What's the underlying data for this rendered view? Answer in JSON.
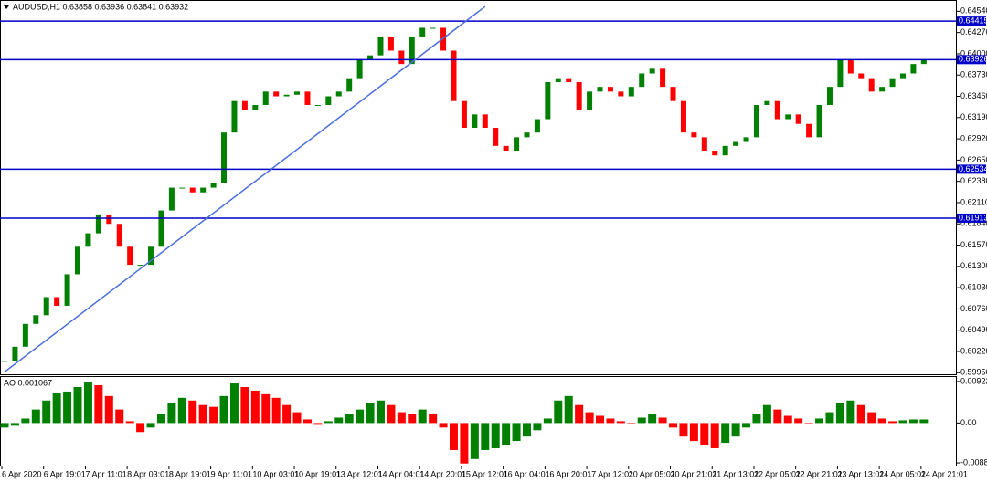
{
  "chart_data": [
    {
      "type": "candlestick",
      "title": "AUDUSD,H1 0.63858 0.63936 0.63841 0.63932",
      "categories": [
        "6 Apr 2020",
        null,
        null,
        null,
        "6 Apr 19:01",
        null,
        null,
        null,
        "7 Apr 11:01",
        null,
        null,
        null,
        "8 Apr 03:01",
        null,
        null,
        null,
        "8 Apr 19:01",
        null,
        null,
        null,
        "9 Apr 11:01",
        null,
        null,
        null,
        "10 Apr 03:01",
        null,
        null,
        null,
        "10 Apr 19:01",
        null,
        null,
        null,
        "13 Apr 12:01",
        null,
        null,
        null,
        "14 Apr 04:01",
        null,
        null,
        null,
        "14 Apr 20:01",
        null,
        null,
        null,
        "15 Apr 12:01",
        null,
        null,
        null,
        "16 Apr 04:01",
        null,
        null,
        null,
        "16 Apr 20:01",
        null,
        null,
        null,
        "17 Apr 12:01",
        null,
        null,
        null,
        "20 Apr 05:01",
        null,
        null,
        null,
        "20 Apr 21:01",
        null,
        null,
        null,
        "21 Apr 13:01",
        null,
        null,
        null,
        "22 Apr 05:01",
        null,
        null,
        null,
        "22 Apr 21:01",
        null,
        null,
        null,
        "23 Apr 13:01",
        null,
        null,
        null,
        "24 Apr 05:01",
        null,
        null,
        null,
        "24 Apr 21:01"
      ],
      "values": [
        0.601,
        0.6028,
        0.6057,
        0.6068,
        0.6091,
        0.608,
        0.612,
        0.6155,
        0.6172,
        0.6196,
        0.6184,
        0.6155,
        0.6132,
        0.6132,
        0.6155,
        0.6201,
        0.623,
        0.623,
        0.6224,
        0.623,
        0.6236,
        0.63,
        0.634,
        0.6329,
        0.6335,
        0.6352,
        0.6346,
        0.6348,
        0.6352,
        0.6335,
        0.6335,
        0.6346,
        0.6352,
        0.6369,
        0.6393,
        0.6398,
        0.6422,
        0.6404,
        0.6387,
        0.6422,
        0.6433,
        0.6433,
        0.6404,
        0.634,
        0.6306,
        0.6323,
        0.6306,
        0.6283,
        0.6277,
        0.6294,
        0.63,
        0.6317,
        0.6364,
        0.6369,
        0.6364,
        0.6329,
        0.6352,
        0.6358,
        0.6352,
        0.6346,
        0.6358,
        0.6375,
        0.6381,
        0.6358,
        0.634,
        0.63,
        0.6294,
        0.6277,
        0.6271,
        0.6283,
        0.6288,
        0.6294,
        0.6335,
        0.634,
        0.6317,
        0.6323,
        0.6311,
        0.6294,
        0.6335,
        0.6358,
        0.6393,
        0.6375,
        0.6369,
        0.6352,
        0.6358,
        0.6369,
        0.6375,
        0.6387,
        0.6393
      ],
      "up_color": "#008000",
      "down_color": "#ff0000",
      "ylim": [
        0.5993,
        0.6466
      ],
      "yticks": [
        {
          "value": 0.6454,
          "label": "0.64540"
        },
        {
          "value": 0.6427,
          "label": "0.64270"
        },
        {
          "value": 0.64,
          "label": "0.64000"
        },
        {
          "value": 0.6373,
          "label": "0.63730"
        },
        {
          "value": 0.6346,
          "label": "0.63460"
        },
        {
          "value": 0.6319,
          "label": "0.63190"
        },
        {
          "value": 0.6292,
          "label": "0.62920"
        },
        {
          "value": 0.6265,
          "label": "0.62650"
        },
        {
          "value": 0.6238,
          "label": "0.62380"
        },
        {
          "value": 0.6211,
          "label": "0.62110"
        },
        {
          "value": 0.6184,
          "label": "0.61840"
        },
        {
          "value": 0.6157,
          "label": "0.61570"
        },
        {
          "value": 0.613,
          "label": "0.61300"
        },
        {
          "value": 0.6103,
          "label": "0.61030"
        },
        {
          "value": 0.6076,
          "label": "0.60760"
        },
        {
          "value": 0.6049,
          "label": "0.60490"
        },
        {
          "value": 0.6022,
          "label": "0.60220"
        },
        {
          "value": 0.5995,
          "label": "0.59950"
        }
      ],
      "hlines": [
        0.64415,
        0.63926,
        0.62534,
        0.61913
      ],
      "hline_color": "#0000c8",
      "trendline": {
        "x": [
          0,
          46
        ],
        "y": [
          0.5996,
          0.646
        ],
        "color": "#4a6fd8"
      }
    },
    {
      "type": "bar",
      "title": "AO 0.001067",
      "values": [
        -0.001,
        -0.0006,
        0.001,
        0.003,
        0.005,
        0.0066,
        0.007,
        0.008,
        0.009,
        0.0084,
        0.006,
        0.003,
        0.0004,
        -0.002,
        -0.001,
        0.002,
        0.0044,
        0.0056,
        0.005,
        0.004,
        0.0036,
        0.006,
        0.0088,
        0.008,
        0.0072,
        0.0064,
        0.0056,
        0.004,
        0.0024,
        0.0008,
        -0.0004,
        0.0004,
        0.0012,
        0.002,
        0.003,
        0.0044,
        0.005,
        0.004,
        0.0024,
        0.002,
        0.003,
        0.002,
        -0.001,
        -0.006,
        -0.009,
        -0.008,
        -0.006,
        -0.0056,
        -0.005,
        -0.004,
        -0.003,
        -0.0016,
        0.001,
        0.005,
        0.006,
        0.004,
        0.0024,
        0.0016,
        0.001,
        0.0004,
        0,
        0.0012,
        0.002,
        0.0012,
        -0.001,
        -0.003,
        -0.004,
        -0.005,
        -0.0056,
        -0.0044,
        -0.003,
        -0.001,
        0.002,
        0.004,
        0.003,
        0.0016,
        0.001,
        0,
        0.001,
        0.0024,
        0.0044,
        0.005,
        0.004,
        0.0024,
        0.001,
        0.0004,
        0.0006,
        0.0008,
        0.0008
      ],
      "up_color": "#008000",
      "down_color": "#ff0000",
      "ylim": [
        -0.00946,
        0.01023
      ],
      "yticks": [
        0.009229,
        {
          "value": 0,
          "label": "0.00"
        },
        -0.008861
      ]
    }
  ]
}
